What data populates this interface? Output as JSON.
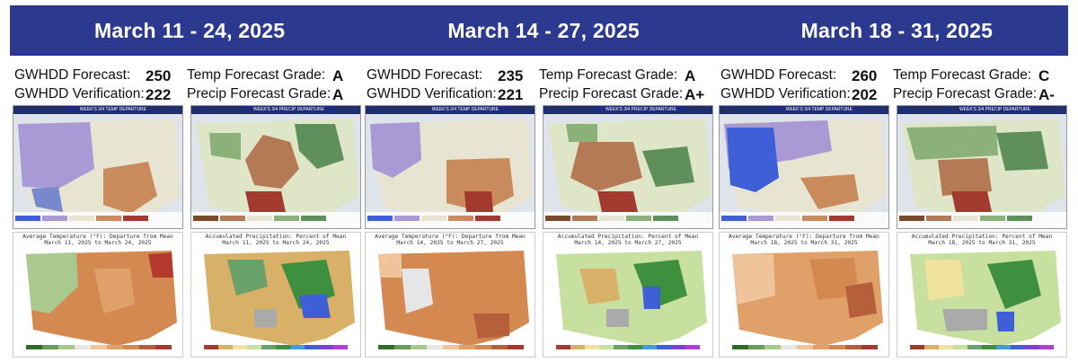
{
  "banner": {
    "periods": [
      "March 11 - 24, 2025",
      "March 14 - 27, 2025",
      "March 18 - 31, 2025"
    ]
  },
  "panels": [
    {
      "gwhdd_forecast_label": "GWHDD Forecast:",
      "gwhdd_forecast": "250",
      "gwhdd_verification_label": "GWHDD Verification:",
      "gwhdd_verification": "222",
      "temp_grade_label": "Temp Forecast Grade:",
      "temp_grade": "A",
      "precip_grade_label": "Precip Forecast Grade:",
      "precip_grade": "A"
    },
    {
      "gwhdd_forecast_label": "GWHDD Forecast:",
      "gwhdd_forecast": "235",
      "gwhdd_verification_label": "GWHDD Verification:",
      "gwhdd_verification": "221",
      "temp_grade_label": "Temp Forecast Grade:",
      "temp_grade": "A",
      "precip_grade_label": "Precip Forecast Grade:",
      "precip_grade": "A+"
    },
    {
      "gwhdd_forecast_label": "GWHDD Forecast:",
      "gwhdd_forecast": "260",
      "gwhdd_verification_label": "GWHDD Verification:",
      "gwhdd_verification": "202",
      "temp_grade_label": "Temp Forecast Grade:",
      "temp_grade": "C",
      "precip_grade_label": "Precip Forecast Grade:",
      "precip_grade": "A-"
    }
  ],
  "map_titles": {
    "fc_temp": "WEEK'S 3/4 TEMP DEPARTURE",
    "fc_precip": "WEEK'S 3/4 PRECIP DEPARTURE",
    "obs_temp_1": "Average Temperature (°F): Departure from Mean",
    "obs_precip_1": "Accumulated Precipitation: Percent of Mean"
  },
  "obs_dates": [
    "March 11, 2025 to March 24, 2025",
    "March 14, 2025 to March 27, 2025",
    "March 18, 2025 to March 31, 2025"
  ],
  "colors": {
    "banner": "#2b3a8f",
    "below": "#a99ad6",
    "much_below": "#3f5fd6",
    "above": "#c98a5c",
    "much_above": "#a33a2f",
    "wet": "#5f8f5a",
    "dry": "#b47a55"
  }
}
